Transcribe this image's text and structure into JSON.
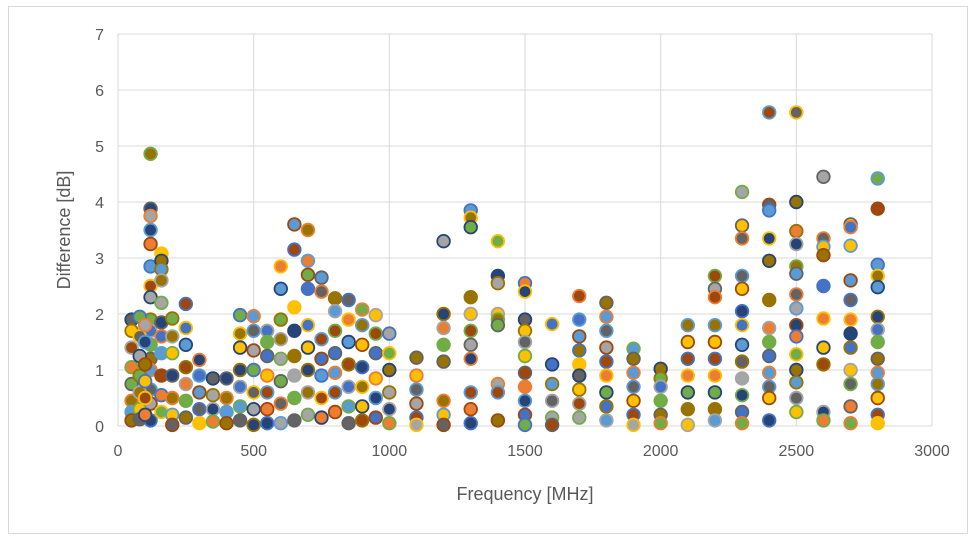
{
  "chart_data": {
    "type": "scatter",
    "title": "",
    "xlabel": "Frequency [MHz]",
    "ylabel": "Difference [dB]",
    "xlim": [
      0,
      3000
    ],
    "ylim": [
      0,
      7
    ],
    "x_ticks": [
      "0",
      "500",
      "1000",
      "1500",
      "2000",
      "2500",
      "3000"
    ],
    "y_ticks": [
      "0",
      "1",
      "2",
      "3",
      "4",
      "5",
      "6",
      "7"
    ],
    "grid": true,
    "legend": "none",
    "colors": {
      "gridline": "#d9d9d9",
      "text": "#595959",
      "marker_palette": [
        "#4472c4",
        "#ed7d31",
        "#a5a5a5",
        "#ffc000",
        "#5b9bd5",
        "#70ad47",
        "#264478",
        "#9e480e",
        "#636363",
        "#997300"
      ]
    },
    "points": [
      {
        "x": 120,
        "y": 4.86
      },
      {
        "x": 120,
        "y": 3.88
      },
      {
        "x": 120,
        "y": 3.75
      },
      {
        "x": 120,
        "y": 3.5
      },
      {
        "x": 120,
        "y": 3.25
      },
      {
        "x": 120,
        "y": 2.85
      },
      {
        "x": 120,
        "y": 2.5
      },
      {
        "x": 120,
        "y": 2.3
      },
      {
        "x": 120,
        "y": 1.9
      },
      {
        "x": 120,
        "y": 1.7
      },
      {
        "x": 120,
        "y": 1.45
      },
      {
        "x": 120,
        "y": 1.2
      },
      {
        "x": 120,
        "y": 1.0
      },
      {
        "x": 120,
        "y": 0.65
      },
      {
        "x": 120,
        "y": 0.4
      },
      {
        "x": 120,
        "y": 0.1
      },
      {
        "x": 160,
        "y": 3.08
      },
      {
        "x": 160,
        "y": 2.95
      },
      {
        "x": 160,
        "y": 2.8
      },
      {
        "x": 160,
        "y": 2.6
      },
      {
        "x": 160,
        "y": 2.2
      },
      {
        "x": 160,
        "y": 1.85
      },
      {
        "x": 160,
        "y": 1.6
      },
      {
        "x": 160,
        "y": 1.3
      },
      {
        "x": 160,
        "y": 0.9
      },
      {
        "x": 160,
        "y": 0.55
      },
      {
        "x": 160,
        "y": 0.25
      },
      {
        "x": 50,
        "y": 1.9
      },
      {
        "x": 50,
        "y": 1.7
      },
      {
        "x": 50,
        "y": 1.4
      },
      {
        "x": 50,
        "y": 1.05
      },
      {
        "x": 50,
        "y": 0.75
      },
      {
        "x": 50,
        "y": 0.45
      },
      {
        "x": 50,
        "y": 0.25
      },
      {
        "x": 50,
        "y": 0.1
      },
      {
        "x": 80,
        "y": 1.95
      },
      {
        "x": 80,
        "y": 1.6
      },
      {
        "x": 80,
        "y": 1.25
      },
      {
        "x": 80,
        "y": 0.9
      },
      {
        "x": 80,
        "y": 0.6
      },
      {
        "x": 80,
        "y": 0.3
      },
      {
        "x": 80,
        "y": 0.12
      },
      {
        "x": 100,
        "y": 1.8
      },
      {
        "x": 100,
        "y": 1.5
      },
      {
        "x": 100,
        "y": 1.1
      },
      {
        "x": 100,
        "y": 0.8
      },
      {
        "x": 100,
        "y": 0.5
      },
      {
        "x": 100,
        "y": 0.2
      },
      {
        "x": 200,
        "y": 1.92
      },
      {
        "x": 200,
        "y": 1.6
      },
      {
        "x": 200,
        "y": 1.3
      },
      {
        "x": 200,
        "y": 0.9
      },
      {
        "x": 200,
        "y": 0.5
      },
      {
        "x": 200,
        "y": 0.2
      },
      {
        "x": 200,
        "y": 0.02
      },
      {
        "x": 250,
        "y": 2.18
      },
      {
        "x": 250,
        "y": 1.75
      },
      {
        "x": 250,
        "y": 1.45
      },
      {
        "x": 250,
        "y": 1.05
      },
      {
        "x": 250,
        "y": 0.75
      },
      {
        "x": 250,
        "y": 0.45
      },
      {
        "x": 250,
        "y": 0.15
      },
      {
        "x": 300,
        "y": 1.18
      },
      {
        "x": 300,
        "y": 0.9
      },
      {
        "x": 300,
        "y": 0.6
      },
      {
        "x": 300,
        "y": 0.3
      },
      {
        "x": 300,
        "y": 0.05
      },
      {
        "x": 350,
        "y": 0.85
      },
      {
        "x": 350,
        "y": 0.55
      },
      {
        "x": 350,
        "y": 0.3
      },
      {
        "x": 350,
        "y": 0.08
      },
      {
        "x": 400,
        "y": 0.85
      },
      {
        "x": 400,
        "y": 0.5
      },
      {
        "x": 400,
        "y": 0.25
      },
      {
        "x": 400,
        "y": 0.05
      },
      {
        "x": 450,
        "y": 1.98
      },
      {
        "x": 450,
        "y": 1.65
      },
      {
        "x": 450,
        "y": 1.4
      },
      {
        "x": 450,
        "y": 1.0
      },
      {
        "x": 450,
        "y": 0.7
      },
      {
        "x": 450,
        "y": 0.35
      },
      {
        "x": 450,
        "y": 0.1
      },
      {
        "x": 500,
        "y": 1.96
      },
      {
        "x": 500,
        "y": 1.7
      },
      {
        "x": 500,
        "y": 1.35
      },
      {
        "x": 500,
        "y": 1.0
      },
      {
        "x": 500,
        "y": 0.6
      },
      {
        "x": 500,
        "y": 0.3
      },
      {
        "x": 500,
        "y": 0.02
      },
      {
        "x": 550,
        "y": 1.7
      },
      {
        "x": 550,
        "y": 1.5
      },
      {
        "x": 550,
        "y": 1.25
      },
      {
        "x": 550,
        "y": 0.9
      },
      {
        "x": 550,
        "y": 0.6
      },
      {
        "x": 550,
        "y": 0.3
      },
      {
        "x": 550,
        "y": 0.05
      },
      {
        "x": 600,
        "y": 2.85
      },
      {
        "x": 600,
        "y": 2.45
      },
      {
        "x": 600,
        "y": 1.9
      },
      {
        "x": 600,
        "y": 1.55
      },
      {
        "x": 600,
        "y": 1.2
      },
      {
        "x": 600,
        "y": 0.8
      },
      {
        "x": 600,
        "y": 0.4
      },
      {
        "x": 600,
        "y": 0.05
      },
      {
        "x": 650,
        "y": 3.6
      },
      {
        "x": 650,
        "y": 3.15
      },
      {
        "x": 650,
        "y": 2.12
      },
      {
        "x": 650,
        "y": 1.7
      },
      {
        "x": 650,
        "y": 1.25
      },
      {
        "x": 650,
        "y": 0.9
      },
      {
        "x": 650,
        "y": 0.5
      },
      {
        "x": 650,
        "y": 0.1
      },
      {
        "x": 700,
        "y": 3.5
      },
      {
        "x": 700,
        "y": 2.95
      },
      {
        "x": 700,
        "y": 2.7
      },
      {
        "x": 700,
        "y": 2.45
      },
      {
        "x": 700,
        "y": 1.8
      },
      {
        "x": 700,
        "y": 1.4
      },
      {
        "x": 700,
        "y": 1.0
      },
      {
        "x": 700,
        "y": 0.6
      },
      {
        "x": 700,
        "y": 0.2
      },
      {
        "x": 750,
        "y": 2.65
      },
      {
        "x": 750,
        "y": 2.4
      },
      {
        "x": 750,
        "y": 1.55
      },
      {
        "x": 750,
        "y": 1.2
      },
      {
        "x": 750,
        "y": 0.9
      },
      {
        "x": 750,
        "y": 0.5
      },
      {
        "x": 750,
        "y": 0.15
      },
      {
        "x": 800,
        "y": 2.28
      },
      {
        "x": 800,
        "y": 2.05
      },
      {
        "x": 800,
        "y": 1.7
      },
      {
        "x": 800,
        "y": 1.3
      },
      {
        "x": 800,
        "y": 0.95
      },
      {
        "x": 800,
        "y": 0.6
      },
      {
        "x": 800,
        "y": 0.25
      },
      {
        "x": 850,
        "y": 2.25
      },
      {
        "x": 850,
        "y": 1.9
      },
      {
        "x": 850,
        "y": 1.5
      },
      {
        "x": 850,
        "y": 1.1
      },
      {
        "x": 850,
        "y": 0.7
      },
      {
        "x": 850,
        "y": 0.35
      },
      {
        "x": 850,
        "y": 0.05
      },
      {
        "x": 900,
        "y": 2.08
      },
      {
        "x": 900,
        "y": 1.8
      },
      {
        "x": 900,
        "y": 1.45
      },
      {
        "x": 900,
        "y": 1.05
      },
      {
        "x": 900,
        "y": 0.7
      },
      {
        "x": 900,
        "y": 0.35
      },
      {
        "x": 900,
        "y": 0.1
      },
      {
        "x": 950,
        "y": 1.98
      },
      {
        "x": 950,
        "y": 1.65
      },
      {
        "x": 950,
        "y": 1.3
      },
      {
        "x": 950,
        "y": 0.85
      },
      {
        "x": 950,
        "y": 0.5
      },
      {
        "x": 950,
        "y": 0.15
      },
      {
        "x": 1000,
        "y": 1.65
      },
      {
        "x": 1000,
        "y": 1.3
      },
      {
        "x": 1000,
        "y": 1.0
      },
      {
        "x": 1000,
        "y": 0.6
      },
      {
        "x": 1000,
        "y": 0.3
      },
      {
        "x": 1000,
        "y": 0.05
      },
      {
        "x": 1100,
        "y": 1.22
      },
      {
        "x": 1100,
        "y": 0.9
      },
      {
        "x": 1100,
        "y": 0.65
      },
      {
        "x": 1100,
        "y": 0.4
      },
      {
        "x": 1100,
        "y": 0.15
      },
      {
        "x": 1100,
        "y": 0.02
      },
      {
        "x": 1200,
        "y": 3.3
      },
      {
        "x": 1200,
        "y": 2.0
      },
      {
        "x": 1200,
        "y": 1.75
      },
      {
        "x": 1200,
        "y": 1.45
      },
      {
        "x": 1200,
        "y": 1.15
      },
      {
        "x": 1200,
        "y": 0.45
      },
      {
        "x": 1200,
        "y": 0.2
      },
      {
        "x": 1200,
        "y": 0.02
      },
      {
        "x": 1300,
        "y": 3.85
      },
      {
        "x": 1300,
        "y": 3.72
      },
      {
        "x": 1300,
        "y": 3.55
      },
      {
        "x": 1300,
        "y": 2.3
      },
      {
        "x": 1300,
        "y": 2.0
      },
      {
        "x": 1300,
        "y": 1.7
      },
      {
        "x": 1300,
        "y": 1.45
      },
      {
        "x": 1300,
        "y": 1.2
      },
      {
        "x": 1300,
        "y": 0.6
      },
      {
        "x": 1300,
        "y": 0.3
      },
      {
        "x": 1300,
        "y": 0.05
      },
      {
        "x": 1400,
        "y": 3.3
      },
      {
        "x": 1400,
        "y": 2.68
      },
      {
        "x": 1400,
        "y": 2.55
      },
      {
        "x": 1400,
        "y": 2.0
      },
      {
        "x": 1400,
        "y": 1.9
      },
      {
        "x": 1400,
        "y": 1.8
      },
      {
        "x": 1400,
        "y": 0.75
      },
      {
        "x": 1400,
        "y": 0.6
      },
      {
        "x": 1400,
        "y": 0.1
      },
      {
        "x": 1500,
        "y": 2.55
      },
      {
        "x": 1500,
        "y": 2.4
      },
      {
        "x": 1500,
        "y": 1.9
      },
      {
        "x": 1500,
        "y": 1.7
      },
      {
        "x": 1500,
        "y": 1.5
      },
      {
        "x": 1500,
        "y": 1.25
      },
      {
        "x": 1500,
        "y": 0.95
      },
      {
        "x": 1500,
        "y": 0.7
      },
      {
        "x": 1500,
        "y": 0.45
      },
      {
        "x": 1500,
        "y": 0.2
      },
      {
        "x": 1500,
        "y": 0.02
      },
      {
        "x": 1600,
        "y": 1.82
      },
      {
        "x": 1600,
        "y": 1.1
      },
      {
        "x": 1600,
        "y": 0.75
      },
      {
        "x": 1600,
        "y": 0.45
      },
      {
        "x": 1600,
        "y": 0.15
      },
      {
        "x": 1600,
        "y": 0.02
      },
      {
        "x": 1700,
        "y": 2.32
      },
      {
        "x": 1700,
        "y": 1.9
      },
      {
        "x": 1700,
        "y": 1.6
      },
      {
        "x": 1700,
        "y": 1.35
      },
      {
        "x": 1700,
        "y": 1.1
      },
      {
        "x": 1700,
        "y": 0.9
      },
      {
        "x": 1700,
        "y": 0.65
      },
      {
        "x": 1700,
        "y": 0.4
      },
      {
        "x": 1700,
        "y": 0.15
      },
      {
        "x": 1800,
        "y": 2.2
      },
      {
        "x": 1800,
        "y": 1.95
      },
      {
        "x": 1800,
        "y": 1.7
      },
      {
        "x": 1800,
        "y": 1.4
      },
      {
        "x": 1800,
        "y": 1.15
      },
      {
        "x": 1800,
        "y": 0.9
      },
      {
        "x": 1800,
        "y": 0.6
      },
      {
        "x": 1800,
        "y": 0.35
      },
      {
        "x": 1800,
        "y": 0.1
      },
      {
        "x": 1900,
        "y": 1.38
      },
      {
        "x": 1900,
        "y": 1.2
      },
      {
        "x": 1900,
        "y": 0.95
      },
      {
        "x": 1900,
        "y": 0.7
      },
      {
        "x": 1900,
        "y": 0.45
      },
      {
        "x": 1900,
        "y": 0.2
      },
      {
        "x": 1900,
        "y": 0.02
      },
      {
        "x": 2000,
        "y": 1.02
      },
      {
        "x": 2000,
        "y": 0.85
      },
      {
        "x": 2000,
        "y": 0.7
      },
      {
        "x": 2000,
        "y": 0.45
      },
      {
        "x": 2000,
        "y": 0.2
      },
      {
        "x": 2000,
        "y": 0.05
      },
      {
        "x": 2100,
        "y": 1.8
      },
      {
        "x": 2100,
        "y": 1.5
      },
      {
        "x": 2100,
        "y": 1.2
      },
      {
        "x": 2100,
        "y": 0.9
      },
      {
        "x": 2100,
        "y": 0.6
      },
      {
        "x": 2100,
        "y": 0.3
      },
      {
        "x": 2100,
        "y": 0.02
      },
      {
        "x": 2200,
        "y": 2.68
      },
      {
        "x": 2200,
        "y": 2.45
      },
      {
        "x": 2200,
        "y": 2.3
      },
      {
        "x": 2200,
        "y": 1.8
      },
      {
        "x": 2200,
        "y": 1.5
      },
      {
        "x": 2200,
        "y": 1.2
      },
      {
        "x": 2200,
        "y": 0.9
      },
      {
        "x": 2200,
        "y": 0.6
      },
      {
        "x": 2200,
        "y": 0.3
      },
      {
        "x": 2200,
        "y": 0.1
      },
      {
        "x": 2300,
        "y": 4.18
      },
      {
        "x": 2300,
        "y": 3.58
      },
      {
        "x": 2300,
        "y": 3.35
      },
      {
        "x": 2300,
        "y": 2.68
      },
      {
        "x": 2300,
        "y": 2.45
      },
      {
        "x": 2300,
        "y": 2.05
      },
      {
        "x": 2300,
        "y": 1.8
      },
      {
        "x": 2300,
        "y": 1.45
      },
      {
        "x": 2300,
        "y": 1.15
      },
      {
        "x": 2300,
        "y": 0.85
      },
      {
        "x": 2300,
        "y": 0.55
      },
      {
        "x": 2300,
        "y": 0.25
      },
      {
        "x": 2300,
        "y": 0.05
      },
      {
        "x": 2400,
        "y": 5.6
      },
      {
        "x": 2400,
        "y": 3.95
      },
      {
        "x": 2400,
        "y": 3.85
      },
      {
        "x": 2400,
        "y": 3.35
      },
      {
        "x": 2400,
        "y": 2.95
      },
      {
        "x": 2400,
        "y": 2.25
      },
      {
        "x": 2400,
        "y": 1.75
      },
      {
        "x": 2400,
        "y": 1.5
      },
      {
        "x": 2400,
        "y": 1.25
      },
      {
        "x": 2400,
        "y": 0.95
      },
      {
        "x": 2400,
        "y": 0.7
      },
      {
        "x": 2400,
        "y": 0.5
      },
      {
        "x": 2400,
        "y": 0.1
      },
      {
        "x": 2500,
        "y": 5.6
      },
      {
        "x": 2500,
        "y": 4.0
      },
      {
        "x": 2500,
        "y": 3.48
      },
      {
        "x": 2500,
        "y": 3.25
      },
      {
        "x": 2500,
        "y": 2.85
      },
      {
        "x": 2500,
        "y": 2.72
      },
      {
        "x": 2500,
        "y": 2.35
      },
      {
        "x": 2500,
        "y": 2.1
      },
      {
        "x": 2500,
        "y": 1.8
      },
      {
        "x": 2500,
        "y": 1.6
      },
      {
        "x": 2500,
        "y": 1.28
      },
      {
        "x": 2500,
        "y": 1.0
      },
      {
        "x": 2500,
        "y": 0.78
      },
      {
        "x": 2500,
        "y": 0.5
      },
      {
        "x": 2500,
        "y": 0.25
      },
      {
        "x": 2600,
        "y": 4.45
      },
      {
        "x": 2600,
        "y": 3.35
      },
      {
        "x": 2600,
        "y": 3.2
      },
      {
        "x": 2600,
        "y": 3.05
      },
      {
        "x": 2600,
        "y": 2.5
      },
      {
        "x": 2600,
        "y": 1.92
      },
      {
        "x": 2600,
        "y": 1.4
      },
      {
        "x": 2600,
        "y": 1.1
      },
      {
        "x": 2600,
        "y": 0.25
      },
      {
        "x": 2600,
        "y": 0.1
      },
      {
        "x": 2700,
        "y": 3.6
      },
      {
        "x": 2700,
        "y": 3.55
      },
      {
        "x": 2700,
        "y": 3.22
      },
      {
        "x": 2700,
        "y": 2.6
      },
      {
        "x": 2700,
        "y": 2.25
      },
      {
        "x": 2700,
        "y": 1.9
      },
      {
        "x": 2700,
        "y": 1.65
      },
      {
        "x": 2700,
        "y": 1.4
      },
      {
        "x": 2700,
        "y": 1.0
      },
      {
        "x": 2700,
        "y": 0.75
      },
      {
        "x": 2700,
        "y": 0.35
      },
      {
        "x": 2700,
        "y": 0.05
      },
      {
        "x": 2800,
        "y": 4.42
      },
      {
        "x": 2800,
        "y": 3.88
      },
      {
        "x": 2800,
        "y": 2.88
      },
      {
        "x": 2800,
        "y": 2.68
      },
      {
        "x": 2800,
        "y": 2.48
      },
      {
        "x": 2800,
        "y": 1.95
      },
      {
        "x": 2800,
        "y": 1.72
      },
      {
        "x": 2800,
        "y": 1.5
      },
      {
        "x": 2800,
        "y": 1.2
      },
      {
        "x": 2800,
        "y": 0.95
      },
      {
        "x": 2800,
        "y": 0.75
      },
      {
        "x": 2800,
        "y": 0.5
      },
      {
        "x": 2800,
        "y": 0.2
      },
      {
        "x": 2800,
        "y": 0.05
      }
    ]
  }
}
